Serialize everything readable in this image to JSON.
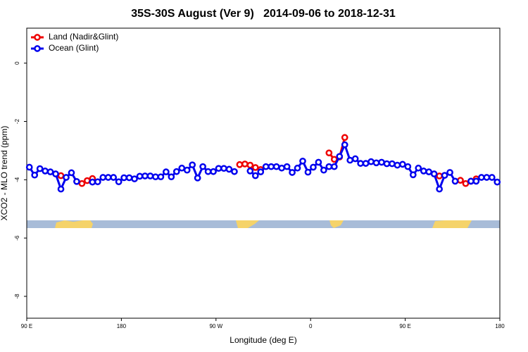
{
  "chart_data": {
    "type": "line",
    "title": "35S-30S August (Ver 9)   2014-09-06 to 2018-12-31",
    "x_label": "Longitude (deg E)",
    "y_label": "XCO2 - MLO trend (ppm)",
    "xlim": [
      90,
      540
    ],
    "xticks": [
      {
        "value": 90,
        "label": "90 E"
      },
      180,
      {
        "value": 270,
        "label": "90 W"
      },
      {
        "value": 360,
        "label": "0"
      },
      {
        "value": 450,
        "label": "90 E"
      },
      {
        "value": 540,
        "label": "180"
      }
    ],
    "ylim": [
      -8.75,
      1.2
    ],
    "yticks": [
      0,
      -2,
      -4,
      -6,
      -8
    ],
    "legend": "top-left",
    "x": [
      92.5,
      97.5,
      102.5,
      107.5,
      112.5,
      117.5,
      122.5,
      127.5,
      132.5,
      137.5,
      142.5,
      147.5,
      152.5,
      157.5,
      162.5,
      167.5,
      172.5,
      177.5,
      182.5,
      187.5,
      192.5,
      197.5,
      202.5,
      207.5,
      212.5,
      217.5,
      222.5,
      227.5,
      232.5,
      237.5,
      242.5,
      247.5,
      252.5,
      257.5,
      262.5,
      267.5,
      272.5,
      277.5,
      282.5,
      287.5,
      292.5,
      297.5,
      302.5,
      307.5,
      312.5,
      317.5,
      322.5,
      327.5,
      332.5,
      337.5,
      342.5,
      347.5,
      352.5,
      357.5,
      362.5,
      367.5,
      372.5,
      377.5,
      382.5,
      387.5,
      392.5,
      397.5,
      402.5,
      407.5,
      412.5,
      417.5,
      422.5,
      427.5,
      432.5,
      437.5,
      442.5,
      447.5,
      452.5,
      457.5,
      462.5,
      467.5,
      472.5,
      477.5,
      482.5,
      487.5,
      492.5,
      497.5,
      502.5,
      507.5,
      512.5,
      517.5,
      522.5,
      527.5,
      532.5,
      537.5
    ],
    "series": [
      {
        "name": "Land (Nadir&Glint)",
        "color": "#ee0000",
        "values": [
          null,
          null,
          null,
          null,
          null,
          null,
          -3.86,
          null,
          null,
          null,
          -4.13,
          -4.03,
          -3.96,
          null,
          null,
          null,
          null,
          null,
          null,
          null,
          null,
          null,
          null,
          null,
          null,
          null,
          null,
          null,
          null,
          null,
          null,
          null,
          null,
          null,
          null,
          null,
          null,
          null,
          null,
          null,
          -3.48,
          -3.46,
          -3.5,
          -3.58,
          -3.65,
          null,
          null,
          null,
          null,
          null,
          null,
          null,
          null,
          null,
          null,
          null,
          null,
          -3.08,
          -3.3,
          -3.22,
          -2.55,
          null,
          null,
          null,
          null,
          null,
          null,
          null,
          null,
          null,
          null,
          null,
          null,
          null,
          null,
          null,
          null,
          null,
          -3.87,
          null,
          null,
          null,
          -4.02,
          -4.13,
          -4.05,
          -3.97,
          null,
          null,
          null,
          null
        ]
      },
      {
        "name": "Ocean (Glint)",
        "color": "#0000ee",
        "values": [
          -3.57,
          -3.84,
          -3.62,
          -3.7,
          -3.73,
          -3.8,
          -4.32,
          -3.92,
          -3.76,
          -4.06,
          null,
          null,
          -4.08,
          -4.07,
          -3.92,
          -3.92,
          -3.92,
          -4.07,
          -3.93,
          -3.93,
          -3.97,
          -3.88,
          -3.87,
          -3.87,
          -3.9,
          -3.9,
          -3.73,
          -3.9,
          -3.72,
          -3.6,
          -3.67,
          -3.49,
          -3.94,
          -3.55,
          -3.72,
          -3.72,
          -3.61,
          -3.61,
          -3.64,
          -3.72,
          null,
          null,
          -3.7,
          -3.86,
          -3.73,
          -3.55,
          -3.55,
          -3.55,
          -3.6,
          -3.55,
          -3.75,
          -3.6,
          -3.36,
          -3.74,
          -3.57,
          -3.4,
          -3.67,
          -3.55,
          -3.55,
          -3.2,
          -2.8,
          -3.33,
          -3.28,
          -3.44,
          -3.44,
          -3.38,
          -3.42,
          -3.4,
          -3.45,
          -3.45,
          -3.5,
          -3.47,
          -3.55,
          -3.83,
          -3.6,
          -3.7,
          -3.73,
          -3.8,
          -4.32,
          -3.85,
          -3.75,
          -4.05,
          null,
          null,
          -4.05,
          -4.05,
          -3.92,
          -3.92,
          -3.92,
          -4.08
        ]
      }
    ]
  }
}
